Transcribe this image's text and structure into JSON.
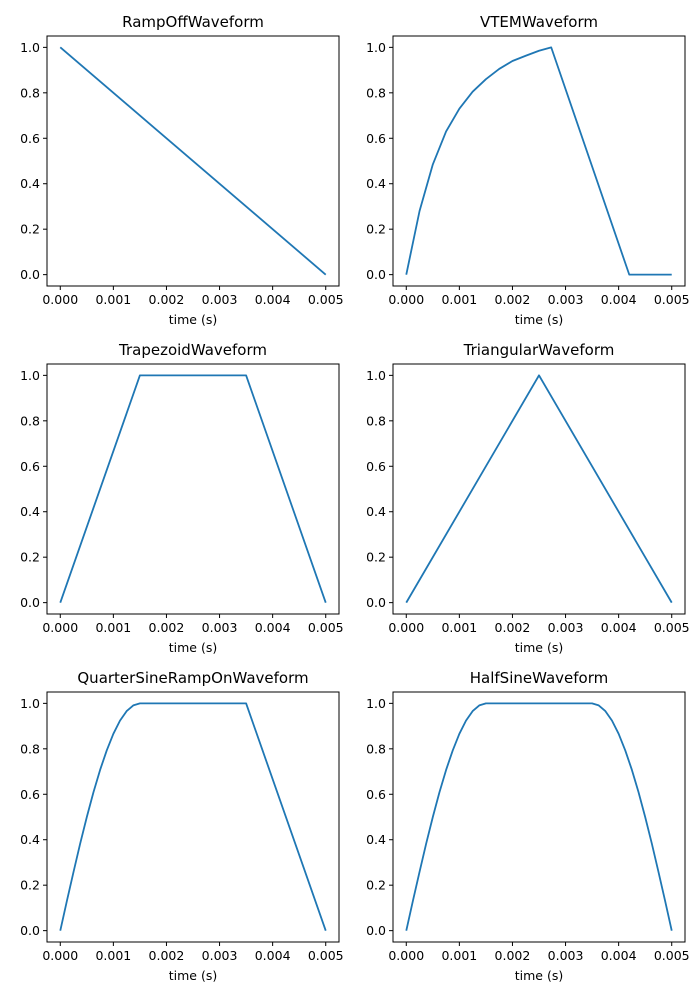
{
  "chart_data": [
    {
      "type": "line",
      "title": "RampOffWaveform",
      "xlabel": "time (s)",
      "ylabel": "",
      "xlim": [
        -0.00025,
        0.00525
      ],
      "ylim": [
        -0.05,
        1.05
      ],
      "xticks": [
        0,
        0.001,
        0.002,
        0.003,
        0.004,
        0.005
      ],
      "xtick_labels": [
        "0.000",
        "0.001",
        "0.002",
        "0.003",
        "0.004",
        "0.005"
      ],
      "yticks": [
        0,
        0.2,
        0.4,
        0.6,
        0.8,
        1.0
      ],
      "ytick_labels": [
        "0.0",
        "0.2",
        "0.4",
        "0.6",
        "0.8",
        "1.0"
      ],
      "grid": false,
      "color": "#1f77b4",
      "x": [
        0,
        0.005
      ],
      "y": [
        1.0,
        0.0
      ]
    },
    {
      "type": "line",
      "title": "VTEMWaveform",
      "xlabel": "time (s)",
      "ylabel": "",
      "xlim": [
        -0.00025,
        0.00525
      ],
      "ylim": [
        -0.05,
        1.05
      ],
      "xticks": [
        0,
        0.001,
        0.002,
        0.003,
        0.004,
        0.005
      ],
      "xtick_labels": [
        "0.000",
        "0.001",
        "0.002",
        "0.003",
        "0.004",
        "0.005"
      ],
      "yticks": [
        0,
        0.2,
        0.4,
        0.6,
        0.8,
        1.0
      ],
      "ytick_labels": [
        "0.0",
        "0.2",
        "0.4",
        "0.6",
        "0.8",
        "1.0"
      ],
      "grid": false,
      "color": "#1f77b4",
      "x": [
        0,
        0.00025,
        0.0005,
        0.00075,
        0.001,
        0.00125,
        0.0015,
        0.00175,
        0.002,
        0.00225,
        0.0025,
        0.00273,
        0.0042,
        0.005
      ],
      "y": [
        0.0,
        0.28,
        0.485,
        0.63,
        0.73,
        0.805,
        0.86,
        0.905,
        0.94,
        0.963,
        0.985,
        1.0,
        0.0,
        0.0
      ]
    },
    {
      "type": "line",
      "title": "TrapezoidWaveform",
      "xlabel": "time (s)",
      "ylabel": "",
      "xlim": [
        -0.00025,
        0.00525
      ],
      "ylim": [
        -0.05,
        1.05
      ],
      "xticks": [
        0,
        0.001,
        0.002,
        0.003,
        0.004,
        0.005
      ],
      "xtick_labels": [
        "0.000",
        "0.001",
        "0.002",
        "0.003",
        "0.004",
        "0.005"
      ],
      "yticks": [
        0,
        0.2,
        0.4,
        0.6,
        0.8,
        1.0
      ],
      "ytick_labels": [
        "0.0",
        "0.2",
        "0.4",
        "0.6",
        "0.8",
        "1.0"
      ],
      "grid": false,
      "color": "#1f77b4",
      "x": [
        0,
        0.0015,
        0.0035,
        0.005
      ],
      "y": [
        0.0,
        1.0,
        1.0,
        0.0
      ]
    },
    {
      "type": "line",
      "title": "TriangularWaveform",
      "xlabel": "time (s)",
      "ylabel": "",
      "xlim": [
        -0.00025,
        0.00525
      ],
      "ylim": [
        -0.05,
        1.05
      ],
      "xticks": [
        0,
        0.001,
        0.002,
        0.003,
        0.004,
        0.005
      ],
      "xtick_labels": [
        "0.000",
        "0.001",
        "0.002",
        "0.003",
        "0.004",
        "0.005"
      ],
      "yticks": [
        0,
        0.2,
        0.4,
        0.6,
        0.8,
        1.0
      ],
      "ytick_labels": [
        "0.0",
        "0.2",
        "0.4",
        "0.6",
        "0.8",
        "1.0"
      ],
      "grid": false,
      "color": "#1f77b4",
      "x": [
        0,
        0.0025,
        0.005
      ],
      "y": [
        0.0,
        1.0,
        0.0
      ]
    },
    {
      "type": "line",
      "title": "QuarterSineRampOnWaveform",
      "xlabel": "time (s)",
      "ylabel": "",
      "xlim": [
        -0.00025,
        0.00525
      ],
      "ylim": [
        -0.05,
        1.05
      ],
      "xticks": [
        0,
        0.001,
        0.002,
        0.003,
        0.004,
        0.005
      ],
      "xtick_labels": [
        "0.000",
        "0.001",
        "0.002",
        "0.003",
        "0.004",
        "0.005"
      ],
      "yticks": [
        0,
        0.2,
        0.4,
        0.6,
        0.8,
        1.0
      ],
      "ytick_labels": [
        "0.0",
        "0.2",
        "0.4",
        "0.6",
        "0.8",
        "1.0"
      ],
      "grid": false,
      "color": "#1f77b4",
      "x": [
        0,
        0.000125,
        0.00025,
        0.000375,
        0.0005,
        0.000625,
        0.00075,
        0.000875,
        0.001,
        0.001125,
        0.00125,
        0.001375,
        0.0015,
        0.0035,
        0.005
      ],
      "y": [
        0.0,
        0.131,
        0.259,
        0.383,
        0.5,
        0.609,
        0.707,
        0.793,
        0.866,
        0.924,
        0.966,
        0.991,
        1.0,
        1.0,
        0.0
      ]
    },
    {
      "type": "line",
      "title": "HalfSineWaveform",
      "xlabel": "time (s)",
      "ylabel": "",
      "xlim": [
        -0.00025,
        0.00525
      ],
      "ylim": [
        -0.05,
        1.05
      ],
      "xticks": [
        0,
        0.001,
        0.002,
        0.003,
        0.004,
        0.005
      ],
      "xtick_labels": [
        "0.000",
        "0.001",
        "0.002",
        "0.003",
        "0.004",
        "0.005"
      ],
      "yticks": [
        0,
        0.2,
        0.4,
        0.6,
        0.8,
        1.0
      ],
      "ytick_labels": [
        "0.0",
        "0.2",
        "0.4",
        "0.6",
        "0.8",
        "1.0"
      ],
      "grid": false,
      "color": "#1f77b4",
      "x": [
        0,
        0.000125,
        0.00025,
        0.000375,
        0.0005,
        0.000625,
        0.00075,
        0.000875,
        0.001,
        0.001125,
        0.00125,
        0.001375,
        0.0015,
        0.0035,
        0.003625,
        0.00375,
        0.003875,
        0.004,
        0.004125,
        0.00425,
        0.004375,
        0.0045,
        0.004625,
        0.00475,
        0.004875,
        0.005
      ],
      "y": [
        0.0,
        0.131,
        0.259,
        0.383,
        0.5,
        0.609,
        0.707,
        0.793,
        0.866,
        0.924,
        0.966,
        0.991,
        1.0,
        1.0,
        0.991,
        0.966,
        0.924,
        0.866,
        0.793,
        0.707,
        0.609,
        0.5,
        0.383,
        0.259,
        0.131,
        0.0
      ]
    }
  ]
}
